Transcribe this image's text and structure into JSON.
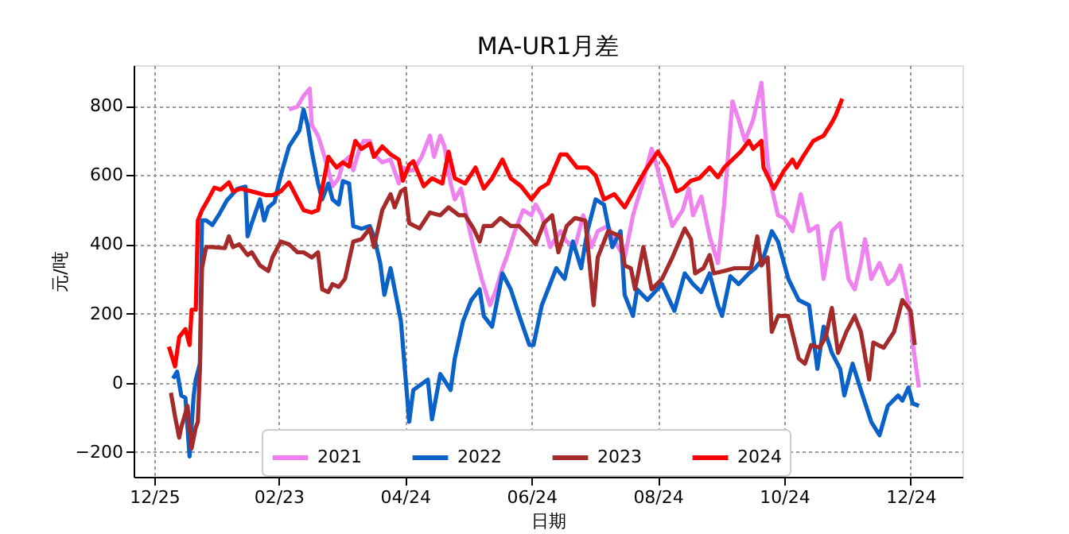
{
  "chart_data": {
    "type": "line",
    "title": "MA-UR1月差",
    "xlabel": "日期",
    "ylabel": "元/吨",
    "xlim": [
      "2023-12-15",
      "2025-01-18"
    ],
    "xticks": [
      {
        "value": "2023-12-25",
        "label": "12/25"
      },
      {
        "value": "2024-02-23",
        "label": "02/23"
      },
      {
        "value": "2024-04-24",
        "label": "04/24"
      },
      {
        "value": "2024-06-24",
        "label": "06/24"
      },
      {
        "value": "2024-08-24",
        "label": "08/24"
      },
      {
        "value": "2024-10-24",
        "label": "10/24"
      },
      {
        "value": "2024-12-24",
        "label": "12/24"
      }
    ],
    "ylim": [
      -272,
      918
    ],
    "yticks": [
      -200,
      0,
      200,
      400,
      600,
      800
    ],
    "grid": true,
    "legend": "bottom",
    "line_style": "solid",
    "marker": "none",
    "series": [
      {
        "name": "2021",
        "color": "#ee82ee",
        "x": [
          "2024-02-28",
          "2024-03-03",
          "2024-03-06",
          "2024-03-09",
          "2024-03-10",
          "2024-03-13",
          "2024-03-15",
          "2024-03-18",
          "2024-03-20",
          "2024-03-23",
          "2024-03-25",
          "2024-03-28",
          "2024-03-30",
          "2024-04-02",
          "2024-04-04",
          "2024-04-07",
          "2024-04-09",
          "2024-04-13",
          "2024-04-17",
          "2024-04-21",
          "2024-04-23",
          "2024-04-26",
          "2024-04-28",
          "2024-05-02",
          "2024-05-06",
          "2024-05-08",
          "2024-05-11",
          "2024-05-13",
          "2024-05-16",
          "2024-05-18",
          "2024-05-21",
          "2024-05-23",
          "2024-05-27",
          "2024-05-31",
          "2024-06-04",
          "2024-06-07",
          "2024-06-10",
          "2024-06-12",
          "2024-06-16",
          "2024-06-20",
          "2024-06-24",
          "2024-06-26",
          "2024-06-29",
          "2024-07-03",
          "2024-07-08",
          "2024-07-11",
          "2024-07-15",
          "2024-07-19",
          "2024-07-23",
          "2024-07-26",
          "2024-07-31",
          "2024-08-04",
          "2024-08-08",
          "2024-08-12",
          "2024-08-17",
          "2024-08-21",
          "2024-08-23",
          "2024-08-27",
          "2024-08-31",
          "2024-09-05",
          "2024-09-08",
          "2024-09-10",
          "2024-09-14",
          "2024-09-18",
          "2024-09-22",
          "2024-09-25",
          "2024-09-29",
          "2024-10-02",
          "2024-10-05",
          "2024-10-09",
          "2024-10-13",
          "2024-10-16",
          "2024-10-18",
          "2024-10-21",
          "2024-10-24",
          "2024-10-28",
          "2024-11-01",
          "2024-11-05",
          "2024-11-09",
          "2024-11-12",
          "2024-11-16",
          "2024-11-20",
          "2024-11-24",
          "2024-11-27",
          "2024-11-30",
          "2024-12-02",
          "2024-12-05",
          "2024-12-09",
          "2024-12-13",
          "2024-12-16",
          "2024-12-19",
          "2024-12-21",
          "2024-12-23",
          "2024-12-25",
          "2024-12-28"
        ],
        "values": [
          790,
          798,
          829,
          850,
          745,
          714,
          676,
          614,
          568,
          591,
          637,
          653,
          614,
          676,
          699,
          699,
          660,
          637,
          645,
          576,
          622,
          614,
          614,
          653,
          714,
          653,
          714,
          683,
          576,
          530,
          561,
          499,
          392,
          300,
          224,
          270,
          331,
          362,
          438,
          499,
          484,
          515,
          484,
          392,
          438,
          408,
          392,
          484,
          392,
          438,
          453,
          400,
          362,
          484,
          584,
          676,
          637,
          545,
          453,
          499,
          561,
          484,
          538,
          423,
          346,
          515,
          813,
          760,
          699,
          760,
          867,
          637,
          561,
          484,
          476,
          438,
          545,
          438,
          453,
          300,
          438,
          461,
          300,
          270,
          346,
          415,
          300,
          346,
          285,
          300,
          339,
          285,
          224,
          116,
          -14
        ]
      },
      {
        "name": "2022",
        "color": "#0a62c8",
        "x": [
          "2024-01-03",
          "2024-01-05",
          "2024-01-07",
          "2024-01-09",
          "2024-01-11",
          "2024-01-13",
          "2024-01-14",
          "2024-01-16",
          "2024-01-17",
          "2024-01-19",
          "2024-01-22",
          "2024-01-25",
          "2024-01-29",
          "2024-02-03",
          "2024-02-07",
          "2024-02-08",
          "2024-02-10",
          "2024-02-14",
          "2024-02-16",
          "2024-02-18",
          "2024-02-21",
          "2024-02-24",
          "2024-02-28",
          "2024-03-04",
          "2024-03-06",
          "2024-03-08",
          "2024-03-10",
          "2024-03-13",
          "2024-03-15",
          "2024-03-18",
          "2024-03-20",
          "2024-03-23",
          "2024-03-25",
          "2024-03-28",
          "2024-03-30",
          "2024-04-03",
          "2024-04-07",
          "2024-04-09",
          "2024-04-12",
          "2024-04-14",
          "2024-04-17",
          "2024-04-22",
          "2024-04-26",
          "2024-04-28",
          "2024-05-05",
          "2024-05-07",
          "2024-05-11",
          "2024-05-16",
          "2024-05-18",
          "2024-05-22",
          "2024-05-26",
          "2024-05-30",
          "2024-06-01",
          "2024-06-05",
          "2024-06-10",
          "2024-06-14",
          "2024-06-19",
          "2024-06-23",
          "2024-06-25",
          "2024-06-29",
          "2024-07-03",
          "2024-07-06",
          "2024-07-10",
          "2024-07-14",
          "2024-07-18",
          "2024-07-21",
          "2024-07-25",
          "2024-07-29",
          "2024-08-02",
          "2024-08-06",
          "2024-08-08",
          "2024-08-12",
          "2024-08-14",
          "2024-08-19",
          "2024-08-26",
          "2024-09-01",
          "2024-09-06",
          "2024-09-10",
          "2024-09-14",
          "2024-09-18",
          "2024-09-22",
          "2024-09-24",
          "2024-09-28",
          "2024-10-02",
          "2024-10-07",
          "2024-10-10",
          "2024-10-14",
          "2024-10-18",
          "2024-10-21",
          "2024-10-26",
          "2024-10-31",
          "2024-11-05",
          "2024-11-09",
          "2024-11-12",
          "2024-11-16",
          "2024-11-20",
          "2024-11-22",
          "2024-11-26",
          "2024-11-30",
          "2024-12-05",
          "2024-12-09",
          "2024-12-13",
          "2024-12-18",
          "2024-12-20",
          "2024-12-23",
          "2024-12-25",
          "2024-12-28"
        ],
        "values": [
          12,
          32,
          -37,
          -44,
          -213,
          -37,
          9,
          55,
          469,
          469,
          456,
          484,
          527,
          560,
          567,
          423,
          461,
          530,
          469,
          507,
          522,
          599,
          683,
          729,
          790,
          744,
          668,
          576,
          530,
          576,
          530,
          515,
          583,
          576,
          453,
          445,
          453,
          423,
          346,
          254,
          331,
          178,
          -113,
          -21,
          9,
          -106,
          25,
          -21,
          70,
          178,
          239,
          270,
          193,
          162,
          316,
          270,
          178,
          109,
          109,
          224,
          285,
          331,
          300,
          408,
          331,
          438,
          530,
          515,
          392,
          438,
          254,
          193,
          270,
          239,
          285,
          208,
          316,
          285,
          262,
          316,
          224,
          193,
          308,
          285,
          316,
          331,
          362,
          438,
          408,
          300,
          239,
          224,
          40,
          162,
          86,
          40,
          -37,
          55,
          -21,
          -113,
          -152,
          -67,
          -37,
          -52,
          -14,
          -60,
          -67
        ]
      },
      {
        "name": "2023",
        "color": "#a52a2a",
        "x": [
          "2024-01-02",
          "2024-01-04",
          "2024-01-06",
          "2024-01-07",
          "2024-01-10",
          "2024-01-12",
          "2024-01-14",
          "2024-01-15",
          "2024-01-16",
          "2024-01-17",
          "2024-01-19",
          "2024-01-22",
          "2024-01-28",
          "2024-01-30",
          "2024-02-01",
          "2024-02-04",
          "2024-02-08",
          "2024-02-10",
          "2024-02-14",
          "2024-02-18",
          "2024-02-20",
          "2024-02-24",
          "2024-02-28",
          "2024-03-03",
          "2024-03-06",
          "2024-03-10",
          "2024-03-13",
          "2024-03-15",
          "2024-03-18",
          "2024-03-20",
          "2024-03-23",
          "2024-03-26",
          "2024-03-30",
          "2024-04-03",
          "2024-04-07",
          "2024-04-09",
          "2024-04-13",
          "2024-04-17",
          "2024-04-19",
          "2024-04-22",
          "2024-04-24",
          "2024-04-26",
          "2024-05-01",
          "2024-05-06",
          "2024-05-11",
          "2024-05-15",
          "2024-05-20",
          "2024-05-23",
          "2024-05-27",
          "2024-05-30",
          "2024-06-01",
          "2024-06-05",
          "2024-06-09",
          "2024-06-14",
          "2024-06-18",
          "2024-06-23",
          "2024-06-26",
          "2024-06-30",
          "2024-07-04",
          "2024-07-07",
          "2024-07-11",
          "2024-07-15",
          "2024-07-20",
          "2024-07-24",
          "2024-07-26",
          "2024-07-31",
          "2024-08-06",
          "2024-08-08",
          "2024-08-11",
          "2024-08-13",
          "2024-08-17",
          "2024-08-21",
          "2024-08-26",
          "2024-08-31",
          "2024-09-06",
          "2024-09-09",
          "2024-09-11",
          "2024-09-15",
          "2024-09-18",
          "2024-09-20",
          "2024-09-25",
          "2024-09-30",
          "2024-10-08",
          "2024-10-11",
          "2024-10-13",
          "2024-10-16",
          "2024-10-18",
          "2024-10-21",
          "2024-10-26",
          "2024-10-31",
          "2024-11-03",
          "2024-11-06",
          "2024-11-10",
          "2024-11-13",
          "2024-11-16",
          "2024-11-19",
          "2024-11-23",
          "2024-11-27",
          "2024-11-30",
          "2024-12-04",
          "2024-12-06",
          "2024-12-11",
          "2024-12-16",
          "2024-12-20",
          "2024-12-24",
          "2024-12-26"
        ],
        "values": [
          -29,
          -98,
          -159,
          -129,
          -67,
          -190,
          -129,
          -113,
          40,
          331,
          392,
          392,
          389,
          423,
          392,
          400,
          369,
          377,
          339,
          323,
          362,
          408,
          400,
          377,
          377,
          362,
          377,
          270,
          262,
          285,
          277,
          300,
          408,
          415,
          446,
          392,
          499,
          545,
          507,
          553,
          561,
          461,
          446,
          492,
          484,
          507,
          484,
          484,
          446,
          408,
          453,
          453,
          476,
          453,
          453,
          423,
          400,
          461,
          484,
          377,
          453,
          476,
          469,
          224,
          362,
          438,
          423,
          339,
          331,
          270,
          392,
          270,
          300,
          362,
          446,
          415,
          316,
          331,
          369,
          316,
          323,
          331,
          331,
          423,
          339,
          362,
          147,
          193,
          193,
          70,
          55,
          109,
          101,
          132,
          216,
          86,
          147,
          193,
          147,
          9,
          116,
          101,
          147,
          239,
          208,
          109
        ]
      },
      {
        "name": "2024",
        "color": "#ff0000",
        "x": [
          "2024-01-01",
          "2024-01-04",
          "2024-01-06",
          "2024-01-09",
          "2024-01-11",
          "2024-01-12",
          "2024-01-14",
          "2024-01-15",
          "2024-01-17",
          "2024-01-20",
          "2024-01-23",
          "2024-01-26",
          "2024-01-30",
          "2024-02-01",
          "2024-02-05",
          "2024-02-10",
          "2024-02-17",
          "2024-02-20",
          "2024-02-24",
          "2024-02-28",
          "2024-03-03",
          "2024-03-06",
          "2024-03-10",
          "2024-03-13",
          "2024-03-15",
          "2024-03-18",
          "2024-03-20",
          "2024-03-22",
          "2024-03-25",
          "2024-03-28",
          "2024-03-31",
          "2024-04-03",
          "2024-04-07",
          "2024-04-09",
          "2024-04-13",
          "2024-04-17",
          "2024-04-21",
          "2024-04-23",
          "2024-04-26",
          "2024-04-28",
          "2024-05-03",
          "2024-05-07",
          "2024-05-12",
          "2024-05-15",
          "2024-05-18",
          "2024-05-23",
          "2024-05-28",
          "2024-06-01",
          "2024-06-05",
          "2024-06-10",
          "2024-06-14",
          "2024-06-19",
          "2024-06-24",
          "2024-06-28",
          "2024-07-02",
          "2024-07-08",
          "2024-07-11",
          "2024-07-16",
          "2024-07-21",
          "2024-07-25",
          "2024-07-29",
          "2024-08-03",
          "2024-08-08",
          "2024-08-13",
          "2024-08-18",
          "2024-08-24",
          "2024-08-29",
          "2024-09-02",
          "2024-09-05",
          "2024-09-09",
          "2024-09-13",
          "2024-09-18",
          "2024-09-22",
          "2024-09-25",
          "2024-09-29",
          "2024-10-03",
          "2024-10-07",
          "2024-10-09",
          "2024-10-13",
          "2024-10-14",
          "2024-10-19",
          "2024-10-24",
          "2024-10-28",
          "2024-10-30",
          "2024-11-02",
          "2024-11-07",
          "2024-11-12",
          "2024-11-16",
          "2024-11-18",
          "2024-11-21"
        ],
        "values": [
          104,
          47,
          132,
          155,
          109,
          211,
          211,
          469,
          499,
          530,
          564,
          558,
          579,
          553,
          561,
          553,
          542,
          542,
          553,
          579,
          533,
          499,
          492,
          499,
          561,
          653,
          637,
          622,
          637,
          625,
          699,
          676,
          691,
          653,
          683,
          660,
          645,
          584,
          630,
          640,
          568,
          591,
          576,
          668,
          591,
          576,
          622,
          561,
          591,
          645,
          591,
          568,
          530,
          561,
          576,
          660,
          660,
          622,
          622,
          599,
          530,
          545,
          507,
          561,
          614,
          668,
          622,
          553,
          561,
          584,
          591,
          622,
          594,
          622,
          645,
          668,
          699,
          676,
          699,
          622,
          561,
          614,
          645,
          622,
          653,
          699,
          714,
          752,
          775,
          821
        ]
      }
    ]
  }
}
